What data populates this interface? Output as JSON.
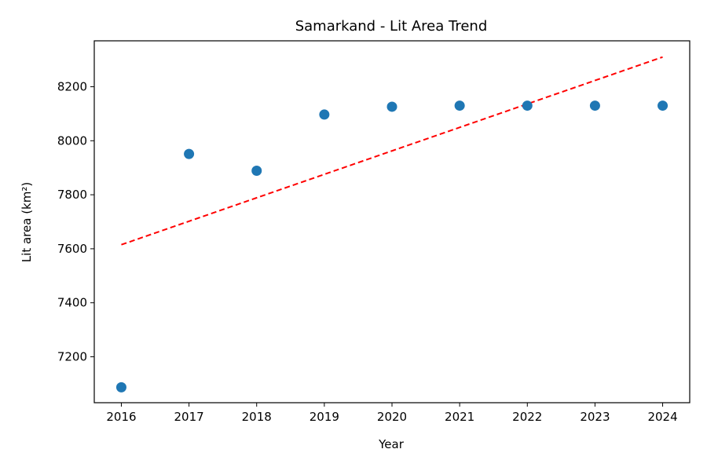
{
  "chart_data": {
    "type": "scatter",
    "title": "Samarkand - Lit Area Trend",
    "xlabel": "Year",
    "ylabel": "Lit area (km²)",
    "x": [
      2016,
      2017,
      2018,
      2019,
      2020,
      2021,
      2022,
      2023,
      2024
    ],
    "y": [
      7087,
      7951,
      7889,
      8097,
      8126,
      8130,
      8130,
      8130,
      8130
    ],
    "xlim": [
      2015.6,
      2024.4
    ],
    "ylim": [
      7030,
      8370
    ],
    "xticks": [
      "2016",
      "2017",
      "2018",
      "2019",
      "2020",
      "2021",
      "2022",
      "2023",
      "2024"
    ],
    "yticks": [
      "7200",
      "7400",
      "7600",
      "7800",
      "8000",
      "8200"
    ],
    "trendline": {
      "style": "dashed",
      "color": "#ff0000",
      "x": [
        2016,
        2024
      ],
      "y": [
        7615,
        8310
      ]
    },
    "marker_color": "#1f77b4",
    "grid": false,
    "legend": "none"
  }
}
